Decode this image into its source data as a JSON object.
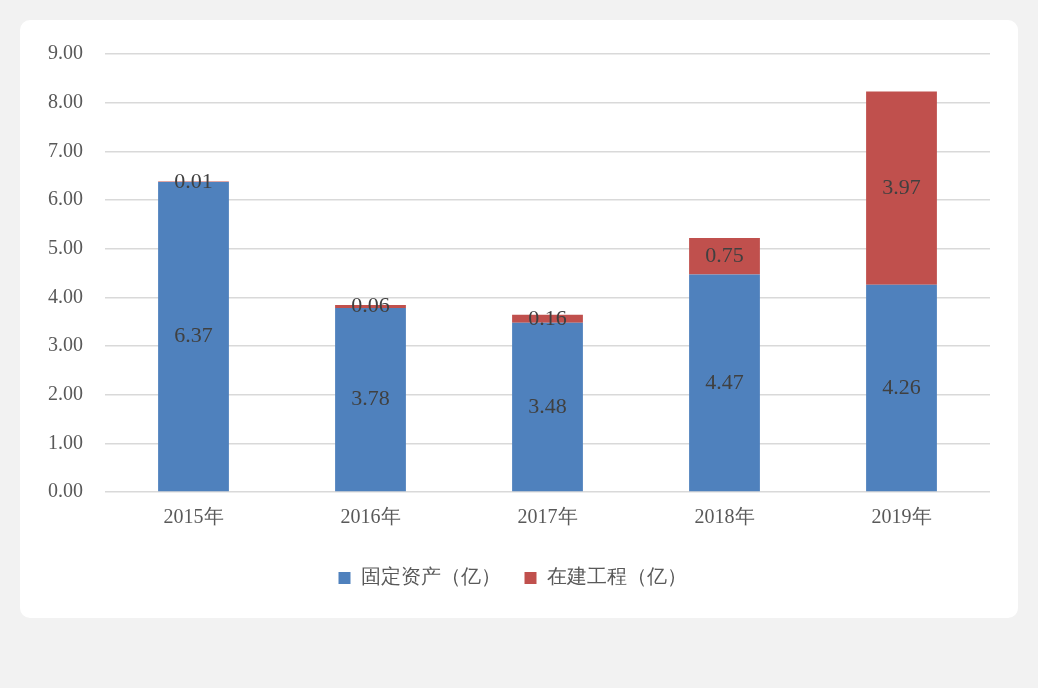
{
  "chart_data": {
    "type": "bar",
    "categories": [
      "2015年",
      "2016年",
      "2017年",
      "2018年",
      "2019年"
    ],
    "series": [
      {
        "name": "固定资产（亿）",
        "color": "#4f81bd",
        "values": [
          6.37,
          3.78,
          3.48,
          4.47,
          4.26
        ]
      },
      {
        "name": "在建工程（亿）",
        "color": "#c0504d",
        "values": [
          0.01,
          0.06,
          0.16,
          0.75,
          3.97
        ]
      }
    ],
    "stacked": true,
    "ylim": [
      0,
      9
    ],
    "yticks": [
      {
        "value": 0,
        "label": "0.00"
      },
      {
        "value": 1,
        "label": "1.00"
      },
      {
        "value": 2,
        "label": "2.00"
      },
      {
        "value": 3,
        "label": "3.00"
      },
      {
        "value": 4,
        "label": "4.00"
      },
      {
        "value": 5,
        "label": "5.00"
      },
      {
        "value": 6,
        "label": "6.00"
      },
      {
        "value": 7,
        "label": "7.00"
      },
      {
        "value": 8,
        "label": "8.00"
      },
      {
        "value": 9,
        "label": "9.00"
      }
    ],
    "grid": "y",
    "legend": "bottom",
    "data_labels": true
  }
}
